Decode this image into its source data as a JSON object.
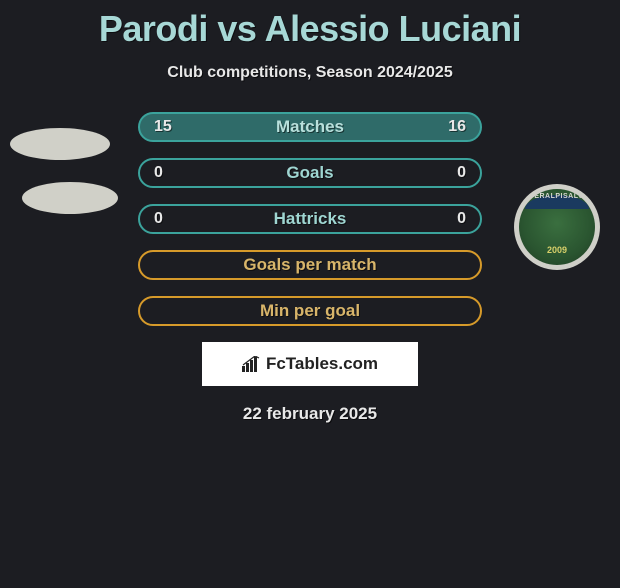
{
  "title": "Parodi vs Alessio Luciani",
  "subtitle": "Club competitions, Season 2024/2025",
  "date": "22 february 2025",
  "logo_text": "FcTables.com",
  "right_logo": {
    "label": "FERALPISALO",
    "year": "2009"
  },
  "colors": {
    "title": "#a7d8d6",
    "row_border_teal": "#3ba39c",
    "row_fill_teal": "#2f6b69",
    "row_border_orange": "#d69a2a",
    "label_teal": "#9fd6d2",
    "label_orange": "#d8b56a"
  },
  "rows": [
    {
      "key": "matches",
      "label": "Matches",
      "left": "15",
      "right": "16",
      "style": "teal_filled"
    },
    {
      "key": "goals",
      "label": "Goals",
      "left": "0",
      "right": "0",
      "style": "teal_outline"
    },
    {
      "key": "hattricks",
      "label": "Hattricks",
      "left": "0",
      "right": "0",
      "style": "teal_outline"
    },
    {
      "key": "gpm",
      "label": "Goals per match",
      "left": "",
      "right": "",
      "style": "orange_outline"
    },
    {
      "key": "mpg",
      "label": "Min per goal",
      "left": "",
      "right": "",
      "style": "orange_outline"
    }
  ],
  "row_styles": {
    "teal_filled": {
      "bg": "#2f6b69",
      "border": "#3ba39c",
      "label_color": "#b8e0dc"
    },
    "teal_outline": {
      "bg": "transparent",
      "border": "#3ba39c",
      "label_color": "#9fd6d2"
    },
    "orange_outline": {
      "bg": "transparent",
      "border": "#d69a2a",
      "label_color": "#d8b56a"
    }
  }
}
